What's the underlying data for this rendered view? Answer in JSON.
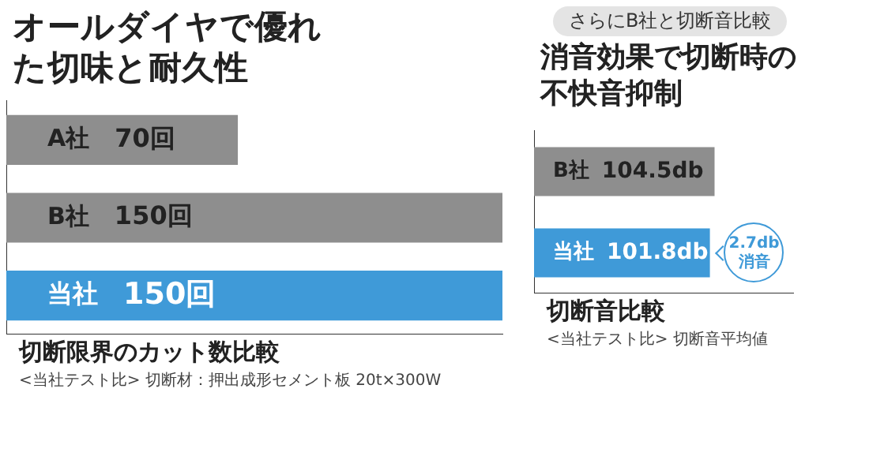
{
  "chart_data": [
    {
      "type": "bar",
      "orientation": "horizontal",
      "title": "オールダイヤで優れた切味と耐久性",
      "categories": [
        "A社",
        "B社",
        "当社"
      ],
      "values": [
        70,
        150,
        150
      ],
      "colors": [
        "#8e8e8e",
        "#8e8e8e",
        "#3f9ad8"
      ],
      "value_labels": [
        "70回",
        "150回",
        "150回"
      ],
      "tick_labels": false,
      "grid": false,
      "legend": false,
      "annotations": [
        "切断限界のカット数比較",
        "<当社テスト比> 切断材：押出成形セメント板 20t×300W"
      ]
    },
    {
      "type": "bar",
      "orientation": "horizontal",
      "subtitle": "さらにB社と切断音比較",
      "title": "消音効果で切断時の不快音抑制",
      "categories": [
        "B社",
        "当社"
      ],
      "values": [
        104.5,
        101.8
      ],
      "colors": [
        "#8e8e8e",
        "#3f9ad8"
      ],
      "value_labels": [
        "104.5db",
        "101.8db"
      ],
      "tick_labels": false,
      "grid": false,
      "legend": false,
      "annotations": [
        {
          "text": "2.7db\n消音",
          "x": 101.8,
          "y": "当社"
        },
        "切断音比較",
        "<当社テスト比> 切断音平均値"
      ]
    }
  ]
}
